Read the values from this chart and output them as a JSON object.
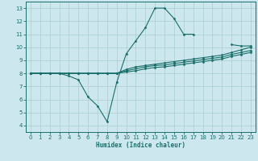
{
  "xlabel": "Humidex (Indice chaleur)",
  "bg_color": "#cce8ee",
  "line_color": "#1a6e6a",
  "grid_color": "#aacccc",
  "xlim": [
    -0.5,
    23.5
  ],
  "ylim": [
    3.5,
    13.5
  ],
  "xticks": [
    0,
    1,
    2,
    3,
    4,
    5,
    6,
    7,
    8,
    9,
    10,
    11,
    12,
    13,
    14,
    15,
    16,
    17,
    18,
    19,
    20,
    21,
    22,
    23
  ],
  "yticks": [
    4,
    5,
    6,
    7,
    8,
    9,
    10,
    11,
    12,
    13
  ],
  "lines": [
    {
      "x": [
        0,
        1,
        2,
        3,
        4,
        5,
        6,
        7,
        8,
        9,
        10,
        11,
        12,
        13,
        14,
        15,
        16,
        17,
        18,
        19,
        20,
        21,
        22,
        23
      ],
      "y": [
        8,
        8,
        8,
        8,
        7.8,
        7.5,
        6.2,
        5.5,
        4.3,
        7.3,
        9.5,
        10.5,
        11.5,
        13.0,
        13.0,
        12.2,
        11.0,
        11.0,
        null,
        null,
        null,
        10.2,
        10.1,
        10.1
      ]
    },
    {
      "x": [
        0,
        1,
        2,
        3,
        4,
        5,
        6,
        7,
        8,
        9,
        10,
        11,
        12,
        13,
        14,
        15,
        16,
        17,
        18,
        19,
        20,
        21,
        22,
        23
      ],
      "y": [
        8,
        8,
        8,
        8,
        8,
        8,
        8,
        8,
        8,
        8.0,
        8.3,
        8.5,
        8.6,
        8.7,
        8.8,
        8.9,
        9.0,
        9.1,
        9.2,
        9.3,
        9.4,
        9.6,
        9.8,
        10.0
      ]
    },
    {
      "x": [
        0,
        1,
        2,
        3,
        4,
        5,
        6,
        7,
        8,
        9,
        10,
        11,
        12,
        13,
        14,
        15,
        16,
        17,
        18,
        19,
        20,
        21,
        22,
        23
      ],
      "y": [
        8,
        8,
        8,
        8,
        8,
        8,
        8,
        8,
        8,
        8.0,
        8.2,
        8.35,
        8.5,
        8.6,
        8.65,
        8.75,
        8.85,
        8.95,
        9.05,
        9.15,
        9.25,
        9.45,
        9.6,
        9.75
      ]
    },
    {
      "x": [
        0,
        1,
        2,
        3,
        4,
        5,
        6,
        7,
        8,
        9,
        10,
        11,
        12,
        13,
        14,
        15,
        16,
        17,
        18,
        19,
        20,
        21,
        22,
        23
      ],
      "y": [
        8,
        8,
        8,
        8,
        8,
        8,
        8,
        8,
        8,
        8.0,
        8.1,
        8.2,
        8.35,
        8.45,
        8.5,
        8.6,
        8.7,
        8.8,
        8.9,
        9.0,
        9.1,
        9.3,
        9.45,
        9.6
      ]
    }
  ]
}
